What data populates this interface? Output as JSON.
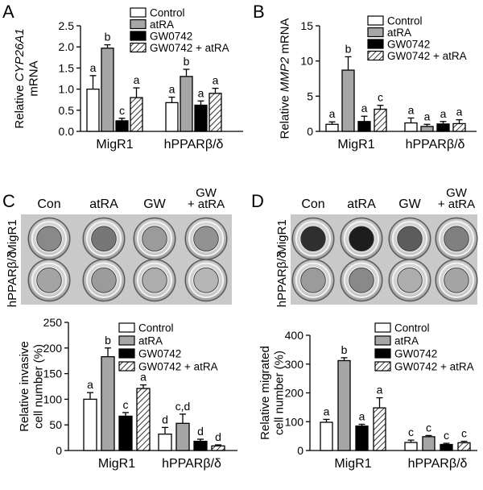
{
  "chart_data": [
    {
      "panel": "A",
      "type": "bar",
      "ylabel_line1_prefix": "Relative ",
      "ylabel_line1_italic": "CYP26A1",
      "ylabel_line2": "mRNA",
      "ylim": [
        0,
        2.5
      ],
      "yticks": [
        "0.0",
        "0.5",
        "1.0",
        "1.5",
        "2.0",
        "2.5"
      ],
      "categories": [
        "MigR1",
        "hPPARβ/δ"
      ],
      "series": [
        {
          "name": "Control",
          "values": [
            1.0,
            0.68
          ],
          "errors": [
            0.32,
            0.13
          ],
          "letters": [
            "a",
            "a"
          ]
        },
        {
          "name": "atRA",
          "values": [
            1.97,
            1.3
          ],
          "errors": [
            0.08,
            0.17
          ],
          "letters": [
            "b",
            "b"
          ]
        },
        {
          "name": "GW0742",
          "values": [
            0.25,
            0.62
          ],
          "errors": [
            0.06,
            0.1
          ],
          "letters": [
            "c",
            "a"
          ]
        },
        {
          "name": "GW0742 + atRA",
          "values": [
            0.8,
            0.9
          ],
          "errors": [
            0.23,
            0.12
          ],
          "letters": [
            "a",
            "a"
          ]
        }
      ]
    },
    {
      "panel": "B",
      "type": "bar",
      "ylabel_line1_prefix": "Relative ",
      "ylabel_line1_italic": "MMP2",
      "ylabel_line1_suffix": " mRNA",
      "ylim": [
        0,
        15
      ],
      "yticks": [
        "0",
        "5",
        "10",
        "15"
      ],
      "categories": [
        "MigR1",
        "hPPARβ/δ"
      ],
      "series": [
        {
          "name": "Control",
          "values": [
            1.0,
            1.2
          ],
          "errors": [
            0.35,
            0.7
          ],
          "letters": [
            "a",
            "a"
          ]
        },
        {
          "name": "atRA",
          "values": [
            8.7,
            0.7
          ],
          "errors": [
            1.9,
            0.3
          ],
          "letters": [
            "b",
            "a"
          ]
        },
        {
          "name": "GW0742",
          "values": [
            1.4,
            1.05
          ],
          "errors": [
            0.75,
            0.35
          ],
          "letters": [
            "a",
            "a"
          ]
        },
        {
          "name": "GW0742 + atRA",
          "values": [
            3.15,
            1.1
          ],
          "errors": [
            0.55,
            0.55
          ],
          "letters": [
            "c",
            "a"
          ]
        }
      ]
    },
    {
      "panel": "C",
      "type": "bar",
      "ylabel_line1": "Relative invasive",
      "ylabel_line2": "cell number (%)",
      "ylim": [
        0,
        250
      ],
      "yticks": [
        "0",
        "50",
        "100",
        "150",
        "200",
        "250"
      ],
      "categories": [
        "MigR1",
        "hPPARβ/δ"
      ],
      "series": [
        {
          "name": "Control",
          "values": [
            100,
            32
          ],
          "errors": [
            13,
            13
          ],
          "letters": [
            "a",
            "d"
          ]
        },
        {
          "name": "atRA",
          "values": [
            183,
            53
          ],
          "errors": [
            17,
            18
          ],
          "letters": [
            "b",
            "c,d"
          ]
        },
        {
          "name": "GW0742",
          "values": [
            67,
            18
          ],
          "errors": [
            7,
            4
          ],
          "letters": [
            "c",
            "d"
          ]
        },
        {
          "name": "GW0742 + atRA",
          "values": [
            121,
            9
          ],
          "errors": [
            7,
            2
          ],
          "letters": [
            "a",
            "d"
          ]
        }
      ]
    },
    {
      "panel": "D",
      "type": "bar",
      "ylabel_line1": "Relative migrated",
      "ylabel_line2": "cell number (%)",
      "ylim": [
        0,
        400
      ],
      "yticks": [
        "0",
        "100",
        "200",
        "300",
        "400"
      ],
      "categories": [
        "MigR1",
        "hPPARβ/δ"
      ],
      "series": [
        {
          "name": "Control",
          "values": [
            98,
            28
          ],
          "errors": [
            10,
            8
          ],
          "letters": [
            "a",
            "c"
          ]
        },
        {
          "name": "atRA",
          "values": [
            312,
            48
          ],
          "errors": [
            10,
            4
          ],
          "letters": [
            "b",
            "c"
          ]
        },
        {
          "name": "GW0742",
          "values": [
            85,
            21
          ],
          "errors": [
            6,
            4
          ],
          "letters": [
            "a",
            "c"
          ]
        },
        {
          "name": "GW0742 + atRA",
          "values": [
            148,
            27
          ],
          "errors": [
            35,
            5
          ],
          "letters": [
            "a",
            "c"
          ]
        }
      ]
    }
  ],
  "photos": [
    {
      "panel": "C",
      "columns": [
        "Con",
        "atRA",
        "GW",
        "GW",
        "+ atRA"
      ],
      "rows": [
        "MigR1",
        "hPPARβ/δ"
      ],
      "stain": [
        [
          0.35,
          0.45,
          0.25,
          0.3
        ],
        [
          0.2,
          0.25,
          0.15,
          0.1
        ]
      ]
    },
    {
      "panel": "D",
      "columns": [
        "Con",
        "atRA",
        "GW",
        "GW",
        "+ atRA"
      ],
      "rows": [
        "MigR1",
        "hPPARβ/δ"
      ],
      "stain": [
        [
          0.85,
          0.95,
          0.6,
          0.4
        ],
        [
          0.25,
          0.35,
          0.15,
          0.2
        ]
      ]
    }
  ],
  "panel_letters": [
    "A",
    "B",
    "C",
    "D"
  ],
  "legend_labels": [
    "Control",
    "atRA",
    "GW0742",
    "GW0742 + atRA"
  ]
}
